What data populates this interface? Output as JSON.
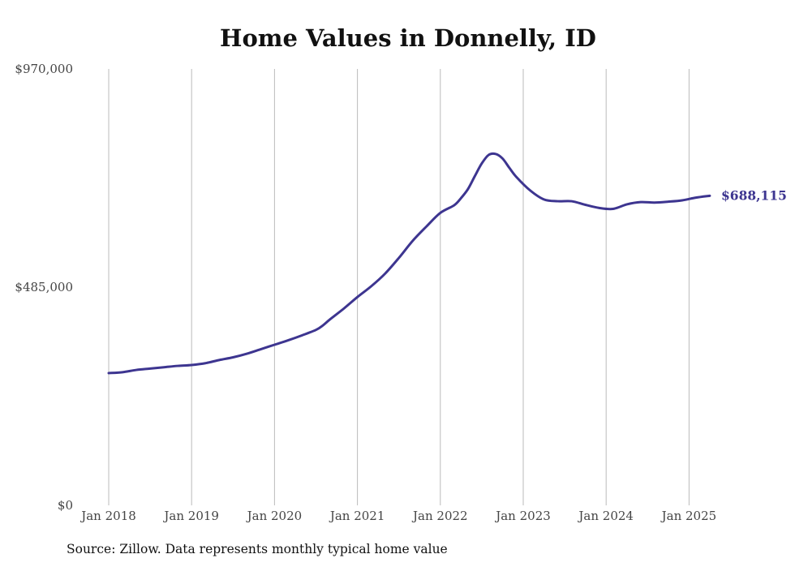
{
  "title": "Home Values in Donnelly, ID",
  "source": "Source: Zillow. Data represents monthly typical home value",
  "colors": {
    "line": "#3d3590",
    "grid": "#bbbbbb",
    "text": "#444444"
  },
  "chart_data": {
    "type": "line",
    "title": "Home Values in Donnelly, ID",
    "xlabel": "",
    "ylabel": "",
    "ylim": [
      0,
      970000
    ],
    "grid": "vertical",
    "y_ticks": [
      {
        "value": 0,
        "label": "$0"
      },
      {
        "value": 485000,
        "label": "$485,000"
      },
      {
        "value": 970000,
        "label": "$970,000"
      }
    ],
    "x_ticks": [
      {
        "value": "2018-01",
        "label": "Jan 2018"
      },
      {
        "value": "2019-01",
        "label": "Jan 2019"
      },
      {
        "value": "2020-01",
        "label": "Jan 2020"
      },
      {
        "value": "2021-01",
        "label": "Jan 2021"
      },
      {
        "value": "2022-01",
        "label": "Jan 2022"
      },
      {
        "value": "2023-01",
        "label": "Jan 2023"
      },
      {
        "value": "2024-01",
        "label": "Jan 2024"
      },
      {
        "value": "2025-01",
        "label": "Jan 2025"
      }
    ],
    "end_label": "$688,115",
    "series": [
      {
        "points": [
          [
            "2018-01",
            294000
          ],
          [
            "2018-03",
            296000
          ],
          [
            "2018-05",
            301000
          ],
          [
            "2018-07",
            304000
          ],
          [
            "2018-09",
            307000
          ],
          [
            "2018-11",
            310000
          ],
          [
            "2019-01",
            312000
          ],
          [
            "2019-03",
            316000
          ],
          [
            "2019-05",
            323000
          ],
          [
            "2019-07",
            329000
          ],
          [
            "2019-09",
            337000
          ],
          [
            "2019-11",
            347000
          ],
          [
            "2020-01",
            357000
          ],
          [
            "2020-03",
            367000
          ],
          [
            "2020-05",
            378000
          ],
          [
            "2020-07",
            390000
          ],
          [
            "2020-08",
            400000
          ],
          [
            "2020-09",
            413000
          ],
          [
            "2020-11",
            437000
          ],
          [
            "2021-01",
            463000
          ],
          [
            "2021-03",
            487000
          ],
          [
            "2021-05",
            515000
          ],
          [
            "2021-07",
            550000
          ],
          [
            "2021-09",
            588000
          ],
          [
            "2021-11",
            620000
          ],
          [
            "2022-01",
            650000
          ],
          [
            "2022-03",
            667000
          ],
          [
            "2022-04",
            683000
          ],
          [
            "2022-05",
            703000
          ],
          [
            "2022-06",
            732000
          ],
          [
            "2022-07",
            760000
          ],
          [
            "2022-08",
            779000
          ],
          [
            "2022-09",
            781000
          ],
          [
            "2022-10",
            771000
          ],
          [
            "2022-11",
            750000
          ],
          [
            "2022-12",
            730000
          ],
          [
            "2023-02",
            700000
          ],
          [
            "2023-04",
            680000
          ],
          [
            "2023-06",
            676000
          ],
          [
            "2023-08",
            676000
          ],
          [
            "2023-10",
            668000
          ],
          [
            "2023-12",
            661000
          ],
          [
            "2024-02",
            659000
          ],
          [
            "2024-04",
            669000
          ],
          [
            "2024-06",
            674000
          ],
          [
            "2024-08",
            673000
          ],
          [
            "2024-10",
            675000
          ],
          [
            "2024-12",
            678000
          ],
          [
            "2025-02",
            684000
          ],
          [
            "2025-04",
            688115
          ]
        ]
      }
    ]
  }
}
